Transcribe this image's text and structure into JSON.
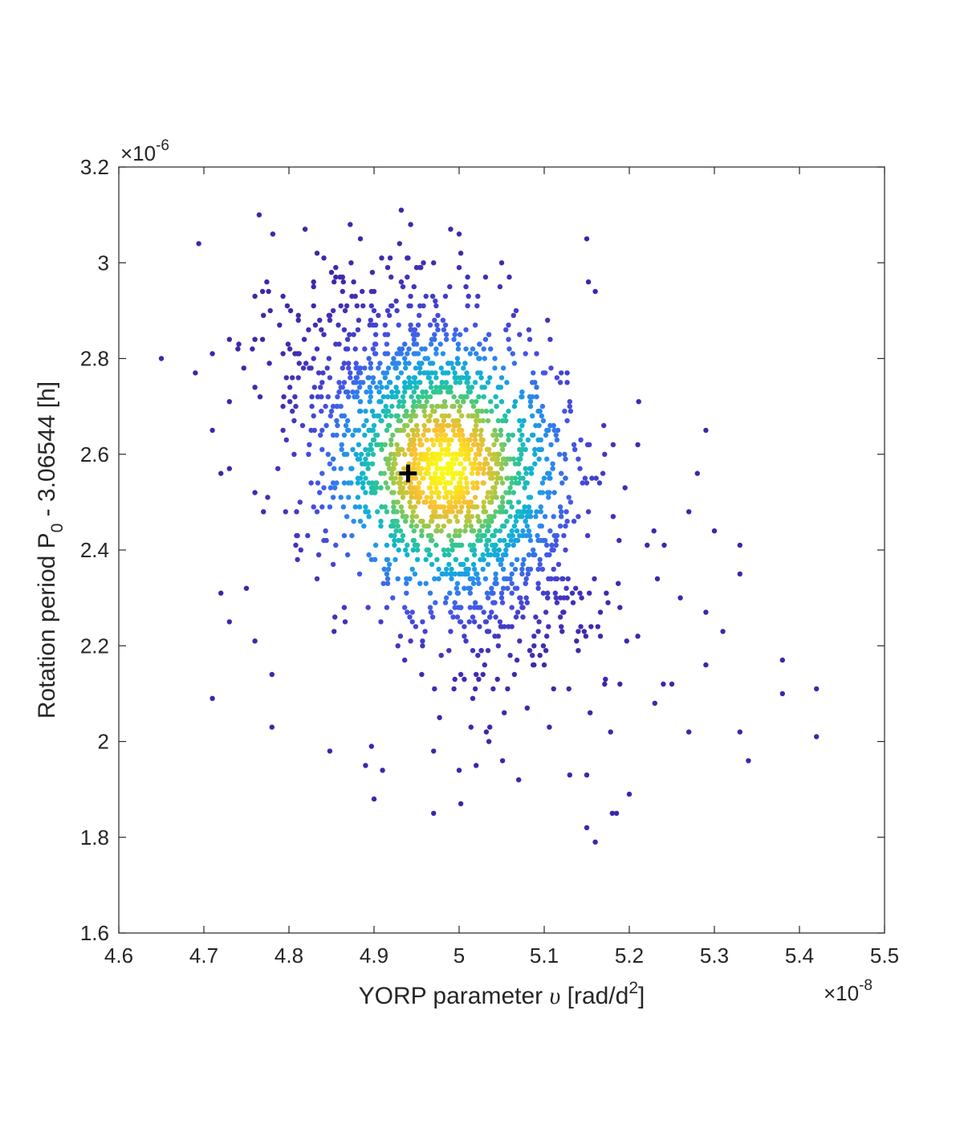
{
  "chart_data": {
    "type": "scatter",
    "xlabel": {
      "prefix": "YORP parameter ",
      "symbol": "υ",
      "unit": " [rad/d",
      "sup": "2",
      "close": "]"
    },
    "ylabel": {
      "prefix": "Rotation period P",
      "sub": "0",
      "suffix": " - 3.06544 [h]"
    },
    "x_exponent": {
      "mult": "×10",
      "exp": "-8"
    },
    "y_exponent": {
      "mult": "×10",
      "exp": "-6"
    },
    "xlim": [
      4.6,
      5.5
    ],
    "ylim": [
      1.6,
      3.2
    ],
    "x_ticks": [
      "4.6",
      "4.7",
      "4.8",
      "4.9",
      "5",
      "5.1",
      "5.2",
      "5.3",
      "5.4",
      "5.5"
    ],
    "y_ticks": [
      "1.6",
      "1.8",
      "2",
      "2.2",
      "2.4",
      "2.6",
      "2.8",
      "3",
      "3.2"
    ],
    "grid": false,
    "colormap": "parula (density)",
    "marker": {
      "symbol": "+",
      "color": "#000000",
      "x": 4.94,
      "y": 2.56
    },
    "cluster": {
      "center_x": 4.985,
      "center_y": 2.57,
      "n_points": 2000
    },
    "outliers": [
      [
        4.65,
        2.8
      ],
      [
        4.69,
        2.77
      ],
      [
        4.71,
        2.81
      ],
      [
        4.71,
        2.65
      ],
      [
        4.71,
        2.09
      ],
      [
        4.72,
        2.31
      ],
      [
        4.72,
        2.56
      ],
      [
        4.73,
        2.84
      ],
      [
        4.73,
        2.71
      ],
      [
        4.73,
        2.57
      ],
      [
        4.73,
        2.25
      ],
      [
        4.74,
        2.82
      ],
      [
        4.75,
        2.32
      ],
      [
        4.76,
        2.93
      ],
      [
        4.76,
        2.84
      ],
      [
        4.76,
        2.52
      ],
      [
        4.76,
        2.21
      ],
      [
        4.77,
        2.89
      ],
      [
        4.77,
        2.48
      ],
      [
        4.78,
        2.14
      ],
      [
        4.78,
        2.03
      ],
      [
        4.85,
        2.98
      ],
      [
        4.89,
        1.95
      ],
      [
        4.9,
        1.88
      ],
      [
        4.91,
        1.94
      ],
      [
        4.92,
        2.97
      ],
      [
        4.95,
        2.99
      ],
      [
        4.97,
        1.85
      ],
      [
        4.97,
        1.98
      ],
      [
        5.0,
        1.94
      ],
      [
        5.0,
        3.06
      ],
      [
        5.02,
        1.95
      ],
      [
        5.05,
        3.0
      ],
      [
        5.07,
        1.92
      ],
      [
        5.13,
        1.93
      ],
      [
        5.15,
        3.05
      ],
      [
        5.15,
        1.82
      ],
      [
        5.16,
        1.79
      ],
      [
        5.16,
        2.94
      ],
      [
        5.18,
        1.85
      ],
      [
        5.2,
        1.89
      ],
      [
        5.21,
        2.22
      ],
      [
        5.23,
        2.08
      ],
      [
        5.24,
        2.12
      ],
      [
        5.25,
        2.12
      ],
      [
        5.26,
        2.3
      ],
      [
        5.27,
        2.48
      ],
      [
        5.27,
        2.02
      ],
      [
        5.28,
        2.56
      ],
      [
        5.29,
        2.65
      ],
      [
        5.29,
        2.16
      ],
      [
        5.29,
        2.27
      ],
      [
        5.3,
        2.44
      ],
      [
        5.31,
        2.23
      ],
      [
        5.33,
        2.41
      ],
      [
        5.33,
        2.35
      ],
      [
        5.33,
        2.02
      ],
      [
        5.34,
        1.96
      ],
      [
        5.38,
        2.17
      ],
      [
        5.38,
        2.1
      ],
      [
        5.42,
        2.11
      ],
      [
        5.42,
        2.01
      ]
    ]
  }
}
